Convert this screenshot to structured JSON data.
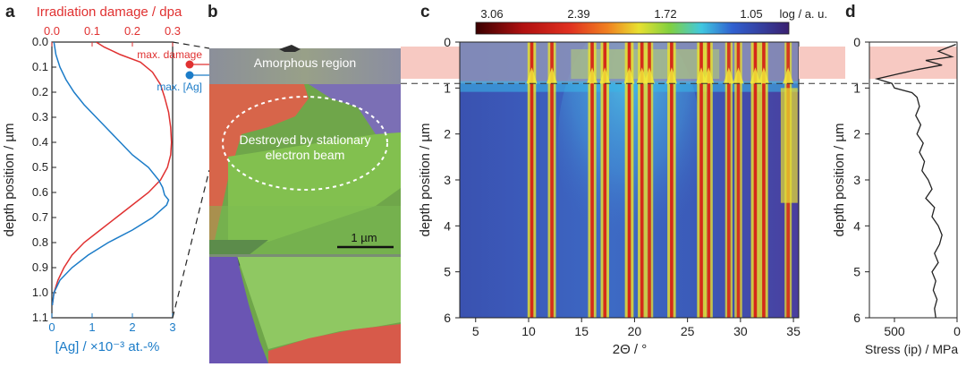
{
  "panels": {
    "a": "a",
    "b": "b",
    "c": "c",
    "d": "d"
  },
  "colors": {
    "damage": "#e03131",
    "silver": "#1c7cc8",
    "stress": "#222222",
    "highlight": "#f7c9c2"
  },
  "chart_data": [
    {
      "panel": "a",
      "type": "line",
      "top_axis_label": "Irradiation damage / dpa",
      "bottom_axis_label": "[Ag] / ×10⁻³ at.-%",
      "ylabel": "depth position / µm",
      "ylim": [
        0.0,
        1.1
      ],
      "y_ticks": [
        "0.0",
        "0.1",
        "0.2",
        "0.3",
        "0.4",
        "0.5",
        "0.6",
        "0.7",
        "0.8",
        "0.9",
        "1.0",
        "1.1"
      ],
      "top_ticks": [
        "0.0",
        "0.1",
        "0.2",
        "0.3"
      ],
      "bottom_ticks": [
        "0",
        "1",
        "2",
        "3"
      ],
      "annotations": {
        "max_damage": "max. damage",
        "max_ag": "max. [Ag]"
      },
      "series": [
        {
          "name": "Irradiation damage",
          "axis": "top",
          "xlim": [
            0.0,
            0.3
          ],
          "points": [
            [
              0.11,
              0.0
            ],
            [
              0.13,
              0.02
            ],
            [
              0.17,
              0.05
            ],
            [
              0.22,
              0.08
            ],
            [
              0.25,
              0.12
            ],
            [
              0.27,
              0.17
            ],
            [
              0.28,
              0.22
            ],
            [
              0.29,
              0.28
            ],
            [
              0.295,
              0.34
            ],
            [
              0.297,
              0.4
            ],
            [
              0.295,
              0.45
            ],
            [
              0.287,
              0.5
            ],
            [
              0.27,
              0.55
            ],
            [
              0.24,
              0.6
            ],
            [
              0.2,
              0.65
            ],
            [
              0.16,
              0.7
            ],
            [
              0.12,
              0.75
            ],
            [
              0.08,
              0.8
            ],
            [
              0.05,
              0.85
            ],
            [
              0.03,
              0.9
            ],
            [
              0.015,
              0.95
            ],
            [
              0.005,
              1.0
            ],
            [
              0.001,
              1.05
            ]
          ]
        },
        {
          "name": "[Ag]",
          "axis": "bottom",
          "xlim": [
            0,
            3
          ],
          "points": [
            [
              0.05,
              0.0
            ],
            [
              0.1,
              0.05
            ],
            [
              0.2,
              0.1
            ],
            [
              0.35,
              0.15
            ],
            [
              0.55,
              0.2
            ],
            [
              0.8,
              0.25
            ],
            [
              1.1,
              0.3
            ],
            [
              1.4,
              0.35
            ],
            [
              1.7,
              0.4
            ],
            [
              2.0,
              0.45
            ],
            [
              2.4,
              0.5
            ],
            [
              2.65,
              0.55
            ],
            [
              2.75,
              0.58
            ],
            [
              2.8,
              0.61
            ],
            [
              2.9,
              0.63
            ],
            [
              2.85,
              0.65
            ],
            [
              2.5,
              0.7
            ],
            [
              2.0,
              0.75
            ],
            [
              1.4,
              0.8
            ],
            [
              0.9,
              0.85
            ],
            [
              0.5,
              0.9
            ],
            [
              0.2,
              0.95
            ],
            [
              0.05,
              1.0
            ],
            [
              0.01,
              1.05
            ]
          ]
        }
      ]
    },
    {
      "panel": "b",
      "type": "image",
      "labels": {
        "amorphous": "Amorphous region",
        "destroyed_line1": "Destroyed by stationary",
        "destroyed_line2": "electron beam",
        "scale_bar": "1 µm"
      }
    },
    {
      "panel": "c",
      "type": "heatmap",
      "colorbar_label": "log / a. u.",
      "colorbar_ticks": [
        "3.06",
        "2.39",
        "1.72",
        "1.05"
      ],
      "xlabel": "2Θ / °",
      "ylabel": "depth position / µm",
      "xlim": [
        3.5,
        35.5
      ],
      "ylim": [
        0,
        6
      ],
      "x_ticks": [
        "5",
        "10",
        "15",
        "20",
        "25",
        "30",
        "35"
      ],
      "y_ticks": [
        "0",
        "1",
        "2",
        "3",
        "4",
        "5",
        "6"
      ],
      "amorphous_boundary_depth": 0.9,
      "peak_positions": [
        10.3,
        12.2,
        16.0,
        17.2,
        19.5,
        20.7,
        21.4,
        23.5,
        26.3,
        27.0,
        28.9,
        29.8,
        31.4,
        32.2,
        34.5
      ],
      "peak_intensity": [
        0.9,
        0.8,
        0.85,
        0.9,
        0.95,
        0.85,
        0.7,
        0.9,
        0.9,
        0.8,
        0.65,
        0.7,
        0.95,
        0.9,
        0.6
      ]
    },
    {
      "panel": "d",
      "type": "line",
      "xlabel": "Stress (ip) / MPa",
      "ylabel": "depth position / µm",
      "xlim": [
        700,
        0
      ],
      "ylim": [
        0,
        6
      ],
      "x_ticks": [
        "500",
        "0"
      ],
      "y_ticks": [
        "0",
        "1",
        "2",
        "3",
        "4",
        "5",
        "6"
      ],
      "points": [
        [
          10,
          0.05
        ],
        [
          150,
          0.2
        ],
        [
          40,
          0.32
        ],
        [
          250,
          0.4
        ],
        [
          120,
          0.5
        ],
        [
          320,
          0.6
        ],
        [
          480,
          0.7
        ],
        [
          640,
          0.8
        ],
        [
          520,
          0.9
        ],
        [
          500,
          1.0
        ],
        [
          360,
          1.1
        ],
        [
          320,
          1.2
        ],
        [
          300,
          1.4
        ],
        [
          330,
          1.6
        ],
        [
          290,
          1.8
        ],
        [
          320,
          2.0
        ],
        [
          270,
          2.2
        ],
        [
          300,
          2.4
        ],
        [
          260,
          2.6
        ],
        [
          280,
          2.8
        ],
        [
          230,
          3.0
        ],
        [
          200,
          3.2
        ],
        [
          250,
          3.4
        ],
        [
          180,
          3.6
        ],
        [
          200,
          3.8
        ],
        [
          150,
          4.0
        ],
        [
          120,
          4.2
        ],
        [
          140,
          4.4
        ],
        [
          180,
          4.6
        ],
        [
          150,
          4.8
        ],
        [
          200,
          5.0
        ],
        [
          170,
          5.2
        ],
        [
          190,
          5.4
        ],
        [
          160,
          5.6
        ],
        [
          180,
          5.8
        ],
        [
          170,
          6.0
        ]
      ]
    }
  ]
}
